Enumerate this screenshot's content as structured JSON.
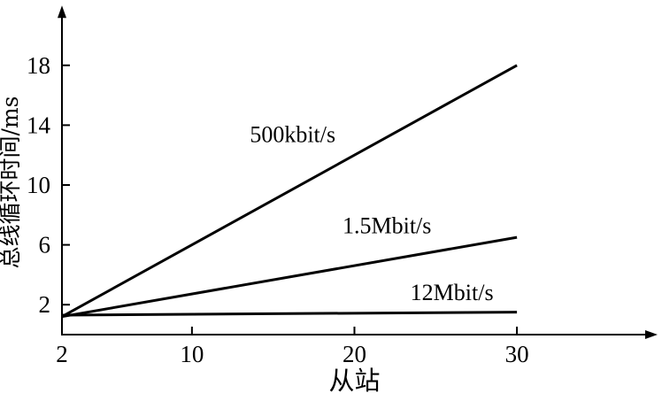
{
  "chart_data": {
    "type": "line",
    "title": "",
    "xlabel": "从站",
    "ylabel": "总线循环时间/ms",
    "x_ticks": [
      2,
      10,
      20,
      30
    ],
    "y_ticks": [
      2,
      6,
      10,
      14,
      18
    ],
    "xlim": [
      2,
      38
    ],
    "ylim": [
      0,
      22
    ],
    "grid": false,
    "legend_position": "inline-labels",
    "line_color": "#000000",
    "background": "#ffffff",
    "series": [
      {
        "name": "500kbit/s",
        "points": [
          [
            2,
            1.2
          ],
          [
            30,
            18
          ]
        ],
        "label_at": [
          16.2,
          13.4
        ]
      },
      {
        "name": "1.5Mbit/s",
        "points": [
          [
            2,
            1.2
          ],
          [
            30,
            6.5
          ]
        ],
        "label_at": [
          22.0,
          7.3
        ]
      },
      {
        "name": "12Mbit/s",
        "points": [
          [
            2,
            1.3
          ],
          [
            30,
            1.5
          ]
        ],
        "label_at": [
          26.0,
          2.85
        ]
      }
    ]
  }
}
